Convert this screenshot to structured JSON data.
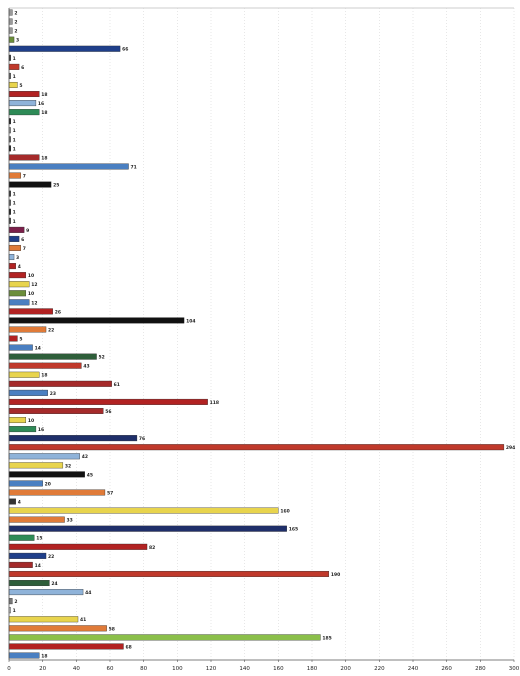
{
  "chart_data": {
    "type": "bar",
    "orientation": "horizontal",
    "title": "",
    "xlabel": "",
    "ylabel": "",
    "xlim": [
      0,
      300
    ],
    "xticks": [
      0,
      20,
      40,
      60,
      80,
      100,
      120,
      140,
      160,
      180,
      200,
      220,
      240,
      260,
      280,
      300
    ],
    "grid": {
      "vertical": true,
      "style": "dotted"
    },
    "legend": "none",
    "bars": [
      {
        "value": 2,
        "label": "2",
        "color": "#9a9a9a"
      },
      {
        "value": 2,
        "label": "2",
        "color": "#9a9a9a"
      },
      {
        "value": 2,
        "label": "2",
        "color": "#9a9a9a"
      },
      {
        "value": 3,
        "label": "3",
        "color": "#6b8e3a"
      },
      {
        "value": 66,
        "label": "66",
        "color": "#1f3f8a"
      },
      {
        "value": 1,
        "label": "1",
        "color": "#333333"
      },
      {
        "value": 6,
        "label": "6",
        "color": "#c0392b"
      },
      {
        "value": 1,
        "label": "1",
        "color": "#666666"
      },
      {
        "value": 5,
        "label": "5",
        "color": "#e8d44d"
      },
      {
        "value": 18,
        "label": "18",
        "color": "#b22222"
      },
      {
        "value": 16,
        "label": "16",
        "color": "#8fb3d9"
      },
      {
        "value": 18,
        "label": "18",
        "color": "#2e8b57"
      },
      {
        "value": 1,
        "label": "1",
        "color": "#111111"
      },
      {
        "value": 1,
        "label": "1",
        "color": "#999999"
      },
      {
        "value": 1,
        "label": "1",
        "color": "#666666"
      },
      {
        "value": 1,
        "label": "1",
        "color": "#111111"
      },
      {
        "value": 18,
        "label": "18",
        "color": "#a52a2a"
      },
      {
        "value": 71,
        "label": "71",
        "color": "#4a7fc1"
      },
      {
        "value": 7,
        "label": "7",
        "color": "#e07b39"
      },
      {
        "value": 25,
        "label": "25",
        "color": "#111111"
      },
      {
        "value": 1,
        "label": "1",
        "color": "#333333"
      },
      {
        "value": 1,
        "label": "1",
        "color": "#666666"
      },
      {
        "value": 1,
        "label": "1",
        "color": "#111111"
      },
      {
        "value": 1,
        "label": "1",
        "color": "#444444"
      },
      {
        "value": 9,
        "label": "9",
        "color": "#7b1f4a"
      },
      {
        "value": 6,
        "label": "6",
        "color": "#1f3f8a"
      },
      {
        "value": 7,
        "label": "7",
        "color": "#e07b39"
      },
      {
        "value": 3,
        "label": "3",
        "color": "#8fb3d9"
      },
      {
        "value": 4,
        "label": "4",
        "color": "#b22222"
      },
      {
        "value": 10,
        "label": "10",
        "color": "#b22222"
      },
      {
        "value": 12,
        "label": "12",
        "color": "#e8d44d"
      },
      {
        "value": 10,
        "label": "10",
        "color": "#6b8e3a"
      },
      {
        "value": 12,
        "label": "12",
        "color": "#4a7fc1"
      },
      {
        "value": 26,
        "label": "26",
        "color": "#b22222"
      },
      {
        "value": 104,
        "label": "104",
        "color": "#111111"
      },
      {
        "value": 22,
        "label": "22",
        "color": "#e07b39"
      },
      {
        "value": 5,
        "label": "5",
        "color": "#b22222"
      },
      {
        "value": 14,
        "label": "14",
        "color": "#4a7fc1"
      },
      {
        "value": 52,
        "label": "52",
        "color": "#2e5e3a"
      },
      {
        "value": 43,
        "label": "43",
        "color": "#c0392b"
      },
      {
        "value": 18,
        "label": "18",
        "color": "#e8d44d"
      },
      {
        "value": 61,
        "label": "61",
        "color": "#a52a2a"
      },
      {
        "value": 23,
        "label": "23",
        "color": "#4a7fc1"
      },
      {
        "value": 118,
        "label": "118",
        "color": "#b22222"
      },
      {
        "value": 56,
        "label": "56",
        "color": "#a52a2a"
      },
      {
        "value": 10,
        "label": "10",
        "color": "#e8d44d"
      },
      {
        "value": 16,
        "label": "16",
        "color": "#2e8b57"
      },
      {
        "value": 76,
        "label": "76",
        "color": "#1f2f6a"
      },
      {
        "value": 294,
        "label": "294",
        "color": "#c0392b"
      },
      {
        "value": 42,
        "label": "42",
        "color": "#8fb3d9"
      },
      {
        "value": 32,
        "label": "32",
        "color": "#e8d44d"
      },
      {
        "value": 45,
        "label": "45",
        "color": "#111111"
      },
      {
        "value": 20,
        "label": "20",
        "color": "#4a7fc1"
      },
      {
        "value": 57,
        "label": "57",
        "color": "#e07b39"
      },
      {
        "value": 4,
        "label": "4",
        "color": "#333333"
      },
      {
        "value": 160,
        "label": "160",
        "color": "#e8d44d"
      },
      {
        "value": 33,
        "label": "33",
        "color": "#e07b39"
      },
      {
        "value": 165,
        "label": "165",
        "color": "#1f2f6a"
      },
      {
        "value": 15,
        "label": "15",
        "color": "#2e8b57"
      },
      {
        "value": 82,
        "label": "82",
        "color": "#b22222"
      },
      {
        "value": 22,
        "label": "22",
        "color": "#1f3f8a"
      },
      {
        "value": 14,
        "label": "14",
        "color": "#a52a2a"
      },
      {
        "value": 190,
        "label": "190",
        "color": "#c0392b"
      },
      {
        "value": 24,
        "label": "24",
        "color": "#2e5e3a"
      },
      {
        "value": 44,
        "label": "44",
        "color": "#8fb3d9"
      },
      {
        "value": 2,
        "label": "2",
        "color": "#777777"
      },
      {
        "value": 1,
        "label": "1",
        "color": "#cccccc"
      },
      {
        "value": 41,
        "label": "41",
        "color": "#e8d44d"
      },
      {
        "value": 58,
        "label": "58",
        "color": "#e07b39"
      },
      {
        "value": 185,
        "label": "185",
        "color": "#8bbf4a"
      },
      {
        "value": 68,
        "label": "68",
        "color": "#b22222"
      },
      {
        "value": 18,
        "label": "18",
        "color": "#4a7fc1"
      }
    ]
  }
}
